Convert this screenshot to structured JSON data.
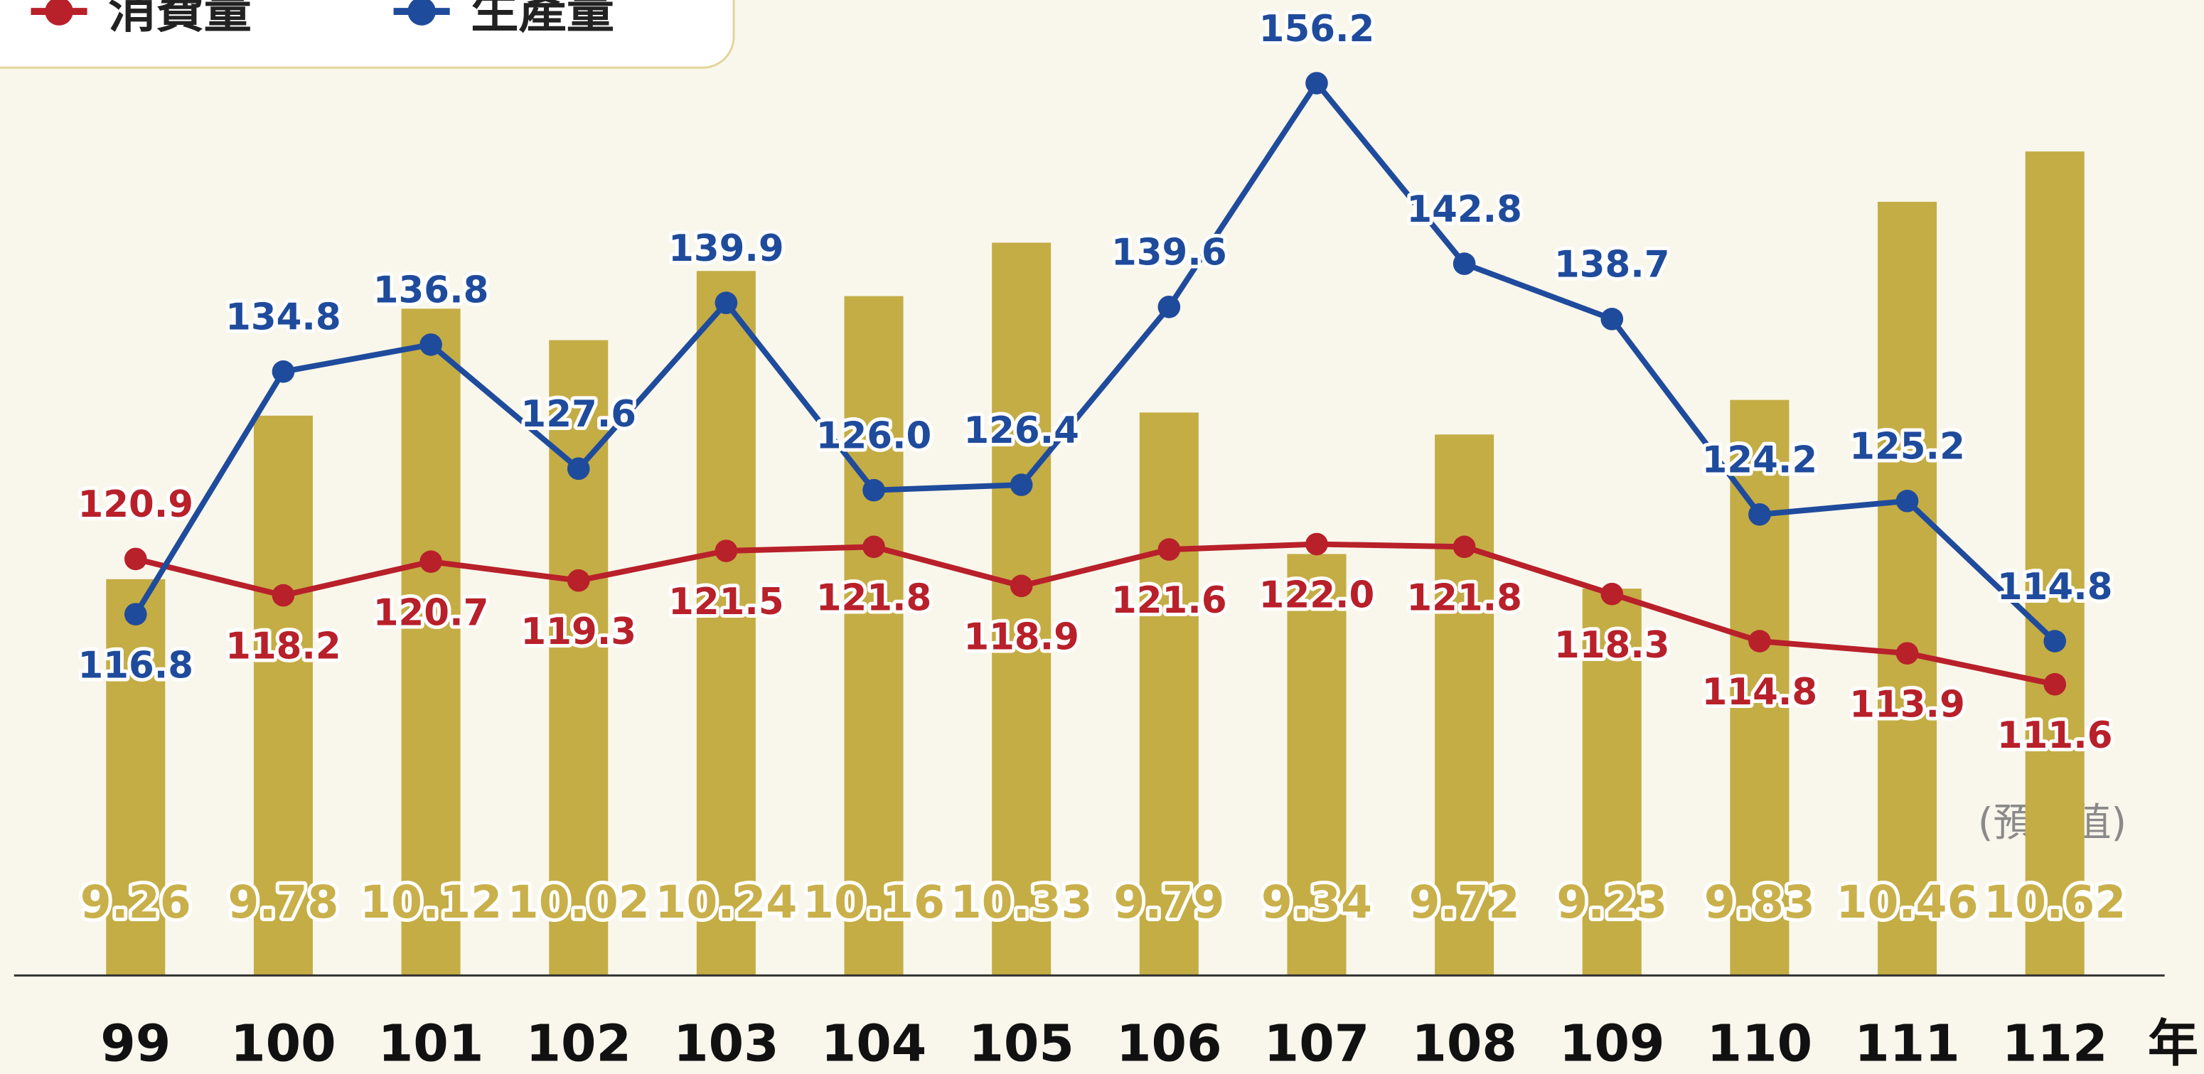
{
  "chart_data": {
    "type": "bar-line",
    "categories": [
      "99",
      "100",
      "101",
      "102",
      "103",
      "104",
      "105",
      "106",
      "107",
      "108",
      "109",
      "110",
      "111",
      "112"
    ],
    "bars": {
      "color": "#c4ad45",
      "axis": "y2",
      "values": [
        9.26,
        9.78,
        10.12,
        10.02,
        10.24,
        10.16,
        10.33,
        9.79,
        9.34,
        9.72,
        9.23,
        9.83,
        10.46,
        10.62
      ]
    },
    "series": [
      {
        "name": "消費量",
        "color": "#b8202a",
        "values": [
          120.9,
          118.2,
          120.7,
          119.3,
          121.5,
          121.8,
          118.9,
          121.6,
          122.0,
          121.8,
          118.3,
          114.8,
          113.9,
          111.6
        ],
        "value_labels": [
          "120.9",
          "118.2",
          "120.7",
          "119.3",
          "121.5",
          "121.8",
          "118.9",
          "121.6",
          "122.0",
          "121.8",
          "118.3",
          "114.8",
          "113.9",
          "111.6"
        ]
      },
      {
        "name": "生產量",
        "color": "#1f4b9c",
        "values": [
          116.8,
          134.8,
          136.8,
          127.6,
          139.9,
          126.0,
          126.4,
          139.6,
          156.2,
          142.8,
          138.7,
          124.2,
          125.2,
          114.8
        ],
        "value_labels": [
          "116.8",
          "134.8",
          "136.8",
          "127.6",
          "139.9",
          "126.0",
          "126.4",
          "139.6",
          "156.2",
          "142.8",
          "138.7",
          "124.2",
          "125.2",
          "114.8"
        ]
      }
    ],
    "ylim": [
      90,
      160
    ],
    "y2lim": [
      8,
      11
    ],
    "x_label": "年",
    "annotation": "(預估值)",
    "legend": "top-left"
  }
}
